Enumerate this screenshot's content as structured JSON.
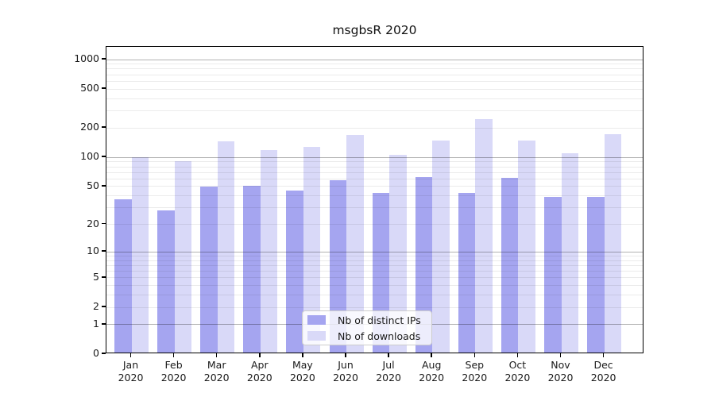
{
  "title": "msgbsR 2020",
  "chart_data": {
    "type": "bar",
    "title": "msgbsR 2020",
    "categories": [
      "Jan",
      "Feb",
      "Mar",
      "Apr",
      "May",
      "Jun",
      "Jul",
      "Aug",
      "Sep",
      "Oct",
      "Nov",
      "Dec"
    ],
    "year_label": "2020",
    "series": [
      {
        "name": "Nb of distinct IPs",
        "color": "#a5a5f0",
        "values": [
          37,
          28,
          50,
          51,
          45,
          58,
          43,
          63,
          43,
          62,
          39,
          39
        ]
      },
      {
        "name": "Nb of downloads",
        "color": "#d9d9f8",
        "values": [
          100,
          91,
          145,
          119,
          128,
          170,
          106,
          150,
          245,
          150,
          111,
          172
        ]
      }
    ],
    "yscale": "log1p",
    "ylim": [
      0,
      1000
    ],
    "y_ticks": [
      0,
      1,
      2,
      5,
      10,
      20,
      50,
      100,
      200,
      500,
      1000
    ],
    "gridlines_major": [
      1,
      10,
      100,
      1000
    ],
    "gridlines_minor": [
      2,
      3,
      4,
      5,
      6,
      7,
      8,
      9,
      20,
      30,
      40,
      50,
      60,
      70,
      80,
      90,
      200,
      300,
      400,
      500,
      600,
      700,
      800,
      900
    ],
    "grid": true,
    "legend_position": "lower center"
  }
}
